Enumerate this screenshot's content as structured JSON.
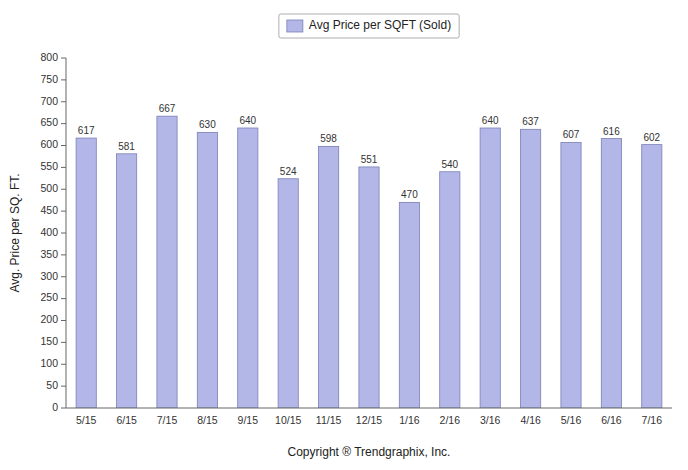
{
  "chart_data": {
    "type": "bar",
    "categories": [
      "5/15",
      "6/15",
      "7/15",
      "8/15",
      "9/15",
      "10/15",
      "11/15",
      "12/15",
      "1/16",
      "2/16",
      "3/16",
      "4/16",
      "5/16",
      "6/16",
      "7/16"
    ],
    "series": [
      {
        "name": "Avg Price per SQFT (Sold)",
        "color": "#b3b7e8",
        "values": [
          617,
          581,
          667,
          630,
          640,
          524,
          598,
          551,
          470,
          540,
          640,
          637,
          607,
          616,
          602
        ]
      }
    ],
    "xlabel": "Copyright ® Trendgraphix, Inc.",
    "ylabel": "Avg. Price per SQ. FT.",
    "ylim": [
      0,
      800
    ],
    "yticks": [
      0,
      50,
      100,
      150,
      200,
      250,
      300,
      350,
      400,
      450,
      500,
      550,
      600,
      650,
      700,
      750,
      800
    ],
    "grid": false,
    "legend": "top",
    "data_labels": true
  }
}
